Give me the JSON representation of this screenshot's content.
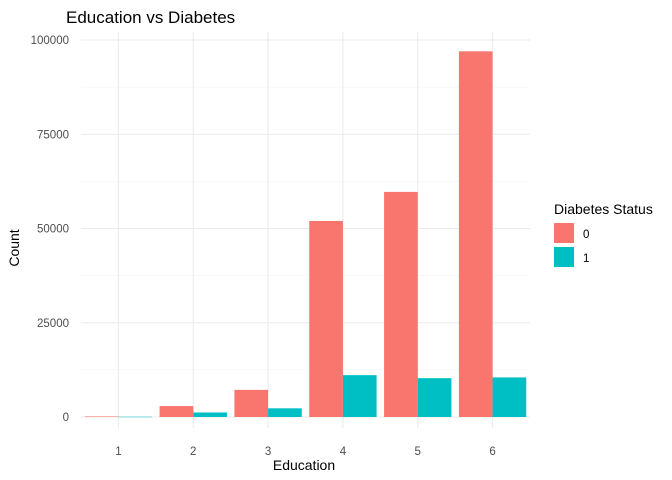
{
  "chart_data": {
    "type": "bar",
    "title": "Education vs Diabetes",
    "xlabel": "Education",
    "ylabel": "Count",
    "categories": [
      "1",
      "2",
      "3",
      "4",
      "5",
      "6"
    ],
    "series": [
      {
        "name": "0",
        "color": "#F8766D",
        "values": [
          150,
          2900,
          7200,
          52000,
          59700,
          97000
        ]
      },
      {
        "name": "1",
        "color": "#00BFC4",
        "values": [
          80,
          1200,
          2300,
          11100,
          10300,
          10500
        ]
      }
    ],
    "ylim": [
      0,
      100000
    ],
    "yticks": [
      0,
      25000,
      50000,
      75000,
      100000
    ],
    "ytick_labels": [
      "0",
      "25000",
      "50000",
      "75000",
      "100000"
    ],
    "grid": true,
    "legend": {
      "title": "Diabetes Status",
      "position": "right",
      "entries": [
        "0",
        "1"
      ]
    }
  }
}
